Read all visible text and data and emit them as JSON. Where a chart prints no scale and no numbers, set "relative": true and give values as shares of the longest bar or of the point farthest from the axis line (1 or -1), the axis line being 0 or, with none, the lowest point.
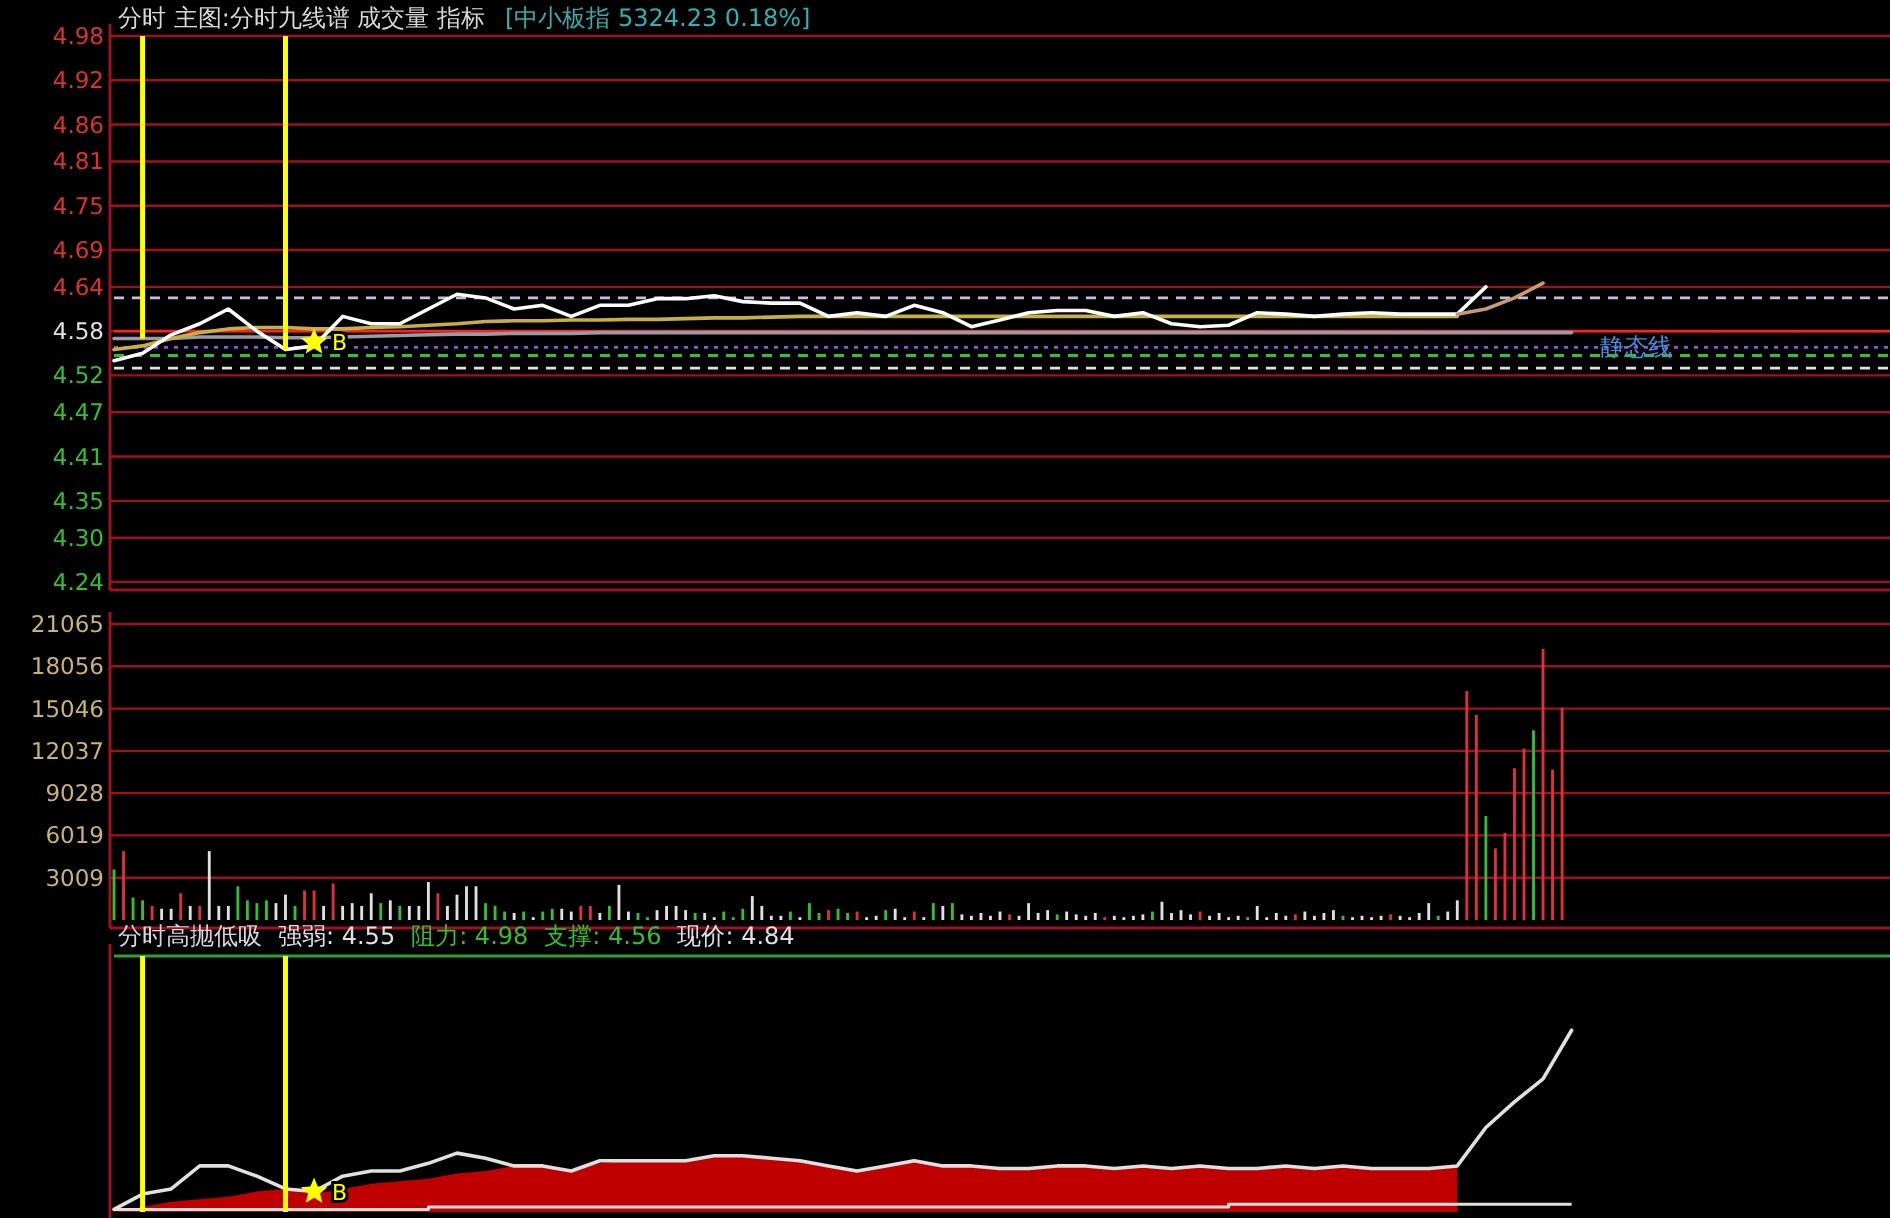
{
  "chart_data": [
    {
      "type": "line",
      "title": "分时  主图:分时九线谱  成交量  指标",
      "subtitle": "[中小板指 5324.23 0.18%]",
      "categories": [
        null,
        null,
        null,
        null,
        null,
        null,
        null,
        null,
        null,
        null,
        null,
        null,
        null,
        null,
        null,
        null,
        null,
        null,
        null,
        null,
        null,
        null,
        null,
        null,
        null,
        null,
        null,
        null,
        null,
        null,
        null,
        null,
        null,
        null,
        null,
        null,
        null,
        null,
        null,
        null,
        null,
        null,
        null,
        null,
        null,
        null,
        null,
        null,
        null,
        null,
        null,
        null,
        null,
        null,
        null,
        null,
        null,
        null,
        null,
        null,
        null,
        null,
        null
      ],
      "series": [
        {
          "color": "#9a9aa8",
          "values": [
            4.57,
            4.57,
            4.57,
            4.572,
            4.572,
            4.572,
            4.571,
            4.571,
            4.572,
            4.573,
            4.574,
            4.575,
            4.576,
            4.576,
            4.577,
            4.577,
            4.577,
            4.578,
            4.578,
            4.578,
            4.578,
            4.578,
            4.578,
            4.578,
            4.578,
            4.578,
            4.578,
            4.578,
            4.578,
            4.578,
            4.578,
            4.578,
            4.578,
            4.578,
            4.578,
            4.578,
            4.578,
            4.578,
            4.578,
            4.578,
            4.578,
            4.578,
            4.578,
            4.578,
            4.578,
            4.578,
            4.578,
            4.578,
            4.578,
            4.578,
            4.578,
            4.578,
            null,
            null,
            null,
            null,
            null,
            null,
            null,
            null,
            null,
            null,
            null
          ]
        },
        {
          "color": "#c8b040",
          "values": [
            4.555,
            4.56,
            4.57,
            4.578,
            4.583,
            4.585,
            4.585,
            4.583,
            4.583,
            4.585,
            4.586,
            4.588,
            4.59,
            4.593,
            4.594,
            4.594,
            4.595,
            4.595,
            4.596,
            4.596,
            4.597,
            4.598,
            4.598,
            4.599,
            4.6,
            4.6,
            4.6,
            4.6,
            4.6,
            4.6,
            4.6,
            4.6,
            4.6,
            4.6,
            4.6,
            4.6,
            4.6,
            4.6,
            4.6,
            4.6,
            4.6,
            4.6,
            4.6,
            4.6,
            4.6,
            4.6,
            4.6,
            4.6,
            null,
            null,
            null,
            null,
            null,
            null,
            null,
            null,
            null,
            null,
            null,
            null,
            null,
            null,
            null
          ]
        },
        {
          "color": "#ffffff",
          "values": [
            4.54,
            4.55,
            4.575,
            4.59,
            4.61,
            4.58,
            4.555,
            4.56,
            4.6,
            4.59,
            4.59,
            4.61,
            4.63,
            4.625,
            4.61,
            4.615,
            4.6,
            4.615,
            4.615,
            4.624,
            4.624,
            4.628,
            4.62,
            4.618,
            4.618,
            4.6,
            4.605,
            4.6,
            4.615,
            4.605,
            4.586,
            4.595,
            4.605,
            4.608,
            4.608,
            4.6,
            4.605,
            4.59,
            4.586,
            4.588,
            4.605,
            4.603,
            4.6,
            4.603,
            4.605,
            4.603,
            4.603,
            4.603,
            4.64,
            null,
            null,
            null,
            null,
            null,
            null,
            null,
            null,
            null,
            null,
            null,
            null,
            null,
            null
          ]
        },
        {
          "color": "#c89a70",
          "values": [
            null,
            null,
            null,
            null,
            null,
            null,
            null,
            null,
            null,
            null,
            null,
            null,
            null,
            null,
            null,
            null,
            null,
            null,
            null,
            null,
            null,
            null,
            null,
            null,
            null,
            null,
            null,
            null,
            null,
            null,
            null,
            null,
            null,
            null,
            null,
            null,
            null,
            null,
            null,
            null,
            null,
            null,
            null,
            null,
            null,
            null,
            null,
            4.603,
            4.61,
            4.625,
            4.645,
            null,
            null,
            null,
            null,
            null,
            null,
            null,
            null,
            null,
            null,
            null,
            null
          ]
        },
        {
          "type": "bar",
          "color": "#ffff00",
          "base": [
            null,
            4.57,
            null,
            null,
            null,
            null,
            4.555,
            null,
            null,
            null,
            null,
            null,
            null,
            null,
            null,
            null,
            null,
            null,
            null,
            null,
            null,
            null,
            null,
            null,
            null,
            null,
            null,
            null,
            null,
            null,
            null,
            null,
            null,
            null,
            null,
            null,
            null,
            null,
            null,
            null,
            null,
            null,
            null,
            null,
            null,
            null,
            null,
            null,
            null,
            null,
            null,
            null,
            null,
            null,
            null,
            null,
            null,
            null,
            null,
            null,
            null,
            null,
            null
          ],
          "values": [
            null,
            0.41,
            null,
            null,
            null,
            null,
            0.425,
            null,
            null,
            null,
            null,
            null,
            null,
            null,
            null,
            null,
            null,
            null,
            null,
            null,
            null,
            null,
            null,
            null,
            null,
            null,
            null,
            null,
            null,
            null,
            null,
            null,
            null,
            null,
            null,
            null,
            null,
            null,
            null,
            null,
            null,
            null,
            null,
            null,
            null,
            null,
            null,
            null,
            null,
            null,
            null,
            null,
            null,
            null,
            null,
            null,
            null,
            null,
            null,
            null,
            null,
            null,
            null
          ]
        },
        {
          "type": "scatter",
          "name": "B",
          "color": "#ffff00",
          "marker": "star",
          "values": [
            null,
            null,
            null,
            null,
            null,
            null,
            null,
            4.565,
            null,
            null,
            null,
            null,
            null,
            null,
            null,
            null,
            null,
            null,
            null,
            null,
            null,
            null,
            null,
            null,
            null,
            null,
            null,
            null,
            null,
            null,
            null,
            null,
            null,
            null,
            null,
            null,
            null,
            null,
            null,
            null,
            null,
            null,
            null,
            null,
            null,
            null,
            null,
            null,
            null,
            null,
            null,
            null,
            null,
            null,
            null,
            null,
            null,
            null,
            null,
            null,
            null,
            null,
            null
          ]
        }
      ],
      "ylim": [
        4.24,
        4.98
      ],
      "yticks": [
        4.98,
        4.92,
        4.86,
        4.81,
        4.75,
        4.69,
        4.64,
        4.58,
        4.52,
        4.47,
        4.41,
        4.35,
        {
          "value": 4.3,
          "label": "4.30"
        },
        4.24
      ],
      "grid": "y",
      "tick_labels": "y",
      "ref_lines": [
        {
          "axis": "y",
          "value": 4.58,
          "color": "#ff2020"
        },
        {
          "axis": "y",
          "value": 4.625,
          "color": "#c0c0e0",
          "line_style": "dashed"
        },
        {
          "axis": "y",
          "value": 4.558,
          "color": "#9050e0",
          "line_style": "dotted"
        },
        {
          "axis": "y",
          "value": 4.547,
          "color": "#30c030",
          "line_style": "dashed"
        },
        {
          "axis": "y",
          "value": 4.53,
          "color": "#e0e0e0",
          "line_style": "dashed"
        }
      ],
      "annotations": [
        {
          "text": "静态线",
          "y": 4.558
        }
      ]
    },
    {
      "type": "bar",
      "categories": [
        null,
        null,
        null,
        null,
        null,
        null,
        null,
        null,
        null,
        null,
        null,
        null,
        null,
        null,
        null,
        null,
        null,
        null,
        null,
        null,
        null,
        null,
        null,
        null,
        null,
        null,
        null,
        null,
        null,
        null,
        null,
        null,
        null,
        null,
        null,
        null,
        null,
        null,
        null,
        null,
        null,
        null,
        null,
        null,
        null,
        null,
        null,
        null,
        null,
        null,
        null,
        null,
        null,
        null,
        null,
        null,
        null,
        null,
        null,
        null,
        null,
        null,
        null,
        null,
        null,
        null,
        null,
        null,
        null,
        null,
        null,
        null,
        null,
        null,
        null,
        null,
        null,
        null,
        null,
        null,
        null,
        null,
        null,
        null,
        null,
        null,
        null,
        null,
        null,
        null,
        null,
        null,
        null,
        null,
        null,
        null,
        null,
        null,
        null,
        null,
        null,
        null,
        null,
        null,
        null,
        null,
        null,
        null,
        null,
        null,
        null,
        null,
        null,
        null,
        null,
        null,
        null,
        null,
        null,
        null,
        null,
        null,
        null,
        null,
        null,
        null,
        null,
        null,
        null,
        null,
        null,
        null,
        null,
        null,
        null,
        null,
        null,
        null,
        null,
        null,
        null,
        null,
        null,
        null,
        null,
        null,
        null,
        null,
        null,
        null,
        null,
        null,
        null,
        null,
        null,
        null,
        null,
        null,
        null,
        null,
        null,
        null,
        null,
        null,
        null,
        null,
        null,
        null,
        null,
        null,
        null,
        null,
        null,
        null,
        null,
        null,
        null,
        null,
        null,
        null,
        null,
        null,
        null,
        null,
        null,
        null,
        null
      ],
      "values": [
        3600,
        4900,
        1600,
        1400,
        1000,
        800,
        800,
        1900,
        1000,
        1000,
        4900,
        1000,
        1000,
        2400,
        1400,
        1200,
        1400,
        1200,
        1800,
        1000,
        2100,
        2100,
        1000,
        2600,
        1000,
        1200,
        1000,
        1900,
        1200,
        1400,
        1000,
        1000,
        1000,
        2700,
        1900,
        1000,
        1800,
        2400,
        2400,
        1200,
        1000,
        600,
        500,
        600,
        200,
        600,
        800,
        800,
        600,
        1000,
        1000,
        500,
        1000,
        2500,
        600,
        500,
        200,
        700,
        1000,
        1000,
        700,
        500,
        500,
        200,
        600,
        200,
        800,
        1700,
        1000,
        300,
        300,
        600,
        200,
        1200,
        500,
        700,
        800,
        500,
        600,
        200,
        300,
        700,
        800,
        200,
        600,
        200,
        1200,
        1000,
        1200,
        400,
        300,
        500,
        300,
        600,
        400,
        300,
        1200,
        500,
        700,
        400,
        600,
        400,
        300,
        500,
        200,
        300,
        200,
        300,
        400,
        600,
        1300,
        500,
        700,
        400,
        600,
        300,
        500,
        200,
        300,
        200,
        1000,
        200,
        500,
        300,
        400,
        600,
        300,
        500,
        700,
        300,
        200,
        300,
        200,
        300,
        400,
        300,
        200,
        500,
        1200,
        300,
        600,
        1400,
        16300,
        14600,
        7400,
        5100,
        6200,
        10800,
        12200,
        13500,
        19300,
        10700,
        15100,
        null,
        null,
        null,
        null,
        null,
        null,
        null,
        null,
        null,
        null,
        null,
        null,
        null,
        null,
        null,
        null,
        null,
        null,
        null,
        null,
        null,
        null,
        null,
        null,
        null,
        null,
        null,
        null,
        null,
        null,
        null,
        null,
        null,
        null
      ],
      "colors": [
        "#30c030",
        "#e03040",
        "#30c030",
        "#30c030",
        "#e03040",
        "#e0e0e0",
        "#e0e0e0",
        "#e03040",
        "#e0e0e0",
        "#e03040",
        "#e0e0e0",
        "#e0e0e0",
        "#e0e0e0",
        "#30c030",
        "#30c030",
        "#30c030",
        "#30c030",
        "#e0e0e0",
        "#e0e0e0",
        "#30c030",
        "#e03040",
        "#e03040",
        "#e0e0e0",
        "#e03040",
        "#e0e0e0",
        "#e0e0e0",
        "#e0e0e0",
        "#e0e0e0",
        "#30c030",
        "#e0e0e0",
        "#30c030",
        "#e0e0e0",
        "#e0e0e0",
        "#e0e0e0",
        "#e03040",
        "#e0e0e0",
        "#e0e0e0",
        "#e0e0e0",
        "#e0e0e0",
        "#30c030",
        "#30c030",
        "#30c030",
        "#e0e0e0",
        "#30c030",
        "#e0e0e0",
        "#30c030",
        "#30c030",
        "#e0e0e0",
        "#e0e0e0",
        "#e03040",
        "#e03040",
        "#e0e0e0",
        "#30c030",
        "#e0e0e0",
        "#e0e0e0",
        "#30c030",
        "#30c030",
        "#e0e0e0",
        "#e0e0e0",
        "#e0e0e0",
        "#e0e0e0",
        "#30c030",
        "#e0e0e0",
        "#e0e0e0",
        "#30c030",
        "#30c030",
        "#30c030",
        "#e0e0e0",
        "#e0e0e0",
        "#e0e0e0",
        "#e0e0e0",
        "#30c030",
        "#e0e0e0",
        "#30c030",
        "#30c030",
        "#e03040",
        "#30c030",
        "#30c030",
        "#e03040",
        "#e0e0e0",
        "#e0e0e0",
        "#30c030",
        "#e0e0e0",
        "#e0e0e0",
        "#e03040",
        "#e0e0e0",
        "#30c030",
        "#e0e0e0",
        "#30c030",
        "#e0e0e0",
        "#e0e0e0",
        "#e0e0e0",
        "#e0e0e0",
        "#e0e0e0",
        "#e03040",
        "#e0e0e0",
        "#e0e0e0",
        "#e0e0e0",
        "#e0e0e0",
        "#30c030",
        "#e0e0e0",
        "#e0e0e0",
        "#e0e0e0",
        "#e0e0e0",
        "#e03040",
        "#e0e0e0",
        "#e0e0e0",
        "#e0e0e0",
        "#e0e0e0",
        "#30c030",
        "#e0e0e0",
        "#e0e0e0",
        "#e0e0e0",
        "#e0e0e0",
        "#e03040",
        "#e0e0e0",
        "#e0e0e0",
        "#e0e0e0",
        "#e0e0e0",
        "#30c030",
        "#e0e0e0",
        "#e0e0e0",
        "#e0e0e0",
        "#e0e0e0",
        "#e03040",
        "#e0e0e0",
        "#e0e0e0",
        "#e0e0e0",
        "#e0e0e0",
        "#30c030",
        "#e0e0e0",
        "#e0e0e0",
        "#e0e0e0",
        "#e0e0e0",
        "#e03040",
        "#e0e0e0",
        "#e0e0e0",
        "#e0e0e0",
        "#e0e0e0",
        "#30c030",
        "#e0e0e0",
        "#e0e0e0",
        "#e03040",
        "#e03040",
        "#30c030",
        "#e03040",
        "#e03040",
        "#e03040",
        "#e03040",
        "#30c030",
        "#e03040",
        "#e03040",
        "#e03040",
        null,
        null,
        null,
        null,
        null,
        null,
        null,
        null,
        null,
        null,
        null,
        null,
        null,
        null,
        null,
        null,
        null,
        null,
        null,
        null,
        null,
        null,
        null,
        null,
        null,
        null,
        null,
        null,
        null,
        null,
        null,
        null,
        null,
        null
      ],
      "ylim": [
        0,
        21065
      ],
      "yticks": [
        21065,
        18056,
        15046,
        12037,
        9028,
        6019,
        3009
      ],
      "grid": "y",
      "tick_labels": "y"
    },
    {
      "type": "line",
      "relative": true,
      "title": "分时高抛低吸",
      "categories": [
        null,
        null,
        null,
        null,
        null,
        null,
        null,
        null,
        null,
        null,
        null,
        null,
        null,
        null,
        null,
        null,
        null,
        null,
        null,
        null,
        null,
        null,
        null,
        null,
        null,
        null,
        null,
        null,
        null,
        null,
        null,
        null,
        null,
        null,
        null,
        null,
        null,
        null,
        null,
        null,
        null,
        null,
        null,
        null,
        null,
        null,
        null,
        null,
        null,
        null,
        null,
        null,
        null,
        null,
        null,
        null,
        null,
        null,
        null,
        null,
        null,
        null,
        null
      ],
      "series": [
        {
          "type": "area",
          "color": "#c00000",
          "values": [
            0,
            0.02,
            0.04,
            0.05,
            0.06,
            0.08,
            0.09,
            0.07,
            0.09,
            0.11,
            0.12,
            0.13,
            0.15,
            0.16,
            0.18,
            0.18,
            0.16,
            0.19,
            0.2,
            0.2,
            0.2,
            0.22,
            0.22,
            0.21,
            0.2,
            0.18,
            0.16,
            0.18,
            0.2,
            0.18,
            0.18,
            0.17,
            0.17,
            0.18,
            0.18,
            0.17,
            0.18,
            0.17,
            0.18,
            0.17,
            0.17,
            0.18,
            0.17,
            0.18,
            0.17,
            0.17,
            0.17,
            0.18,
            null,
            null,
            null,
            null,
            null,
            null,
            null,
            null,
            null,
            null,
            null,
            null,
            null,
            null,
            null
          ]
        },
        {
          "color": "#e0e0e0",
          "values": [
            0.01,
            0.07,
            0.09,
            0.18,
            0.18,
            0.14,
            0.09,
            0.08,
            0.14,
            0.16,
            0.16,
            0.19,
            0.23,
            0.21,
            0.18,
            0.18,
            0.16,
            0.2,
            0.2,
            0.2,
            0.2,
            0.22,
            0.22,
            0.21,
            0.2,
            0.18,
            0.16,
            0.18,
            0.2,
            0.18,
            0.18,
            0.17,
            0.17,
            0.18,
            0.18,
            0.17,
            0.18,
            0.17,
            0.18,
            0.17,
            0.17,
            0.18,
            0.17,
            0.18,
            0.17,
            0.17,
            0.17,
            0.18,
            0.33,
            0.43,
            0.52,
            0.71,
            null,
            null,
            null,
            null,
            null,
            null,
            null,
            null,
            null,
            null,
            null
          ]
        },
        {
          "type": "step",
          "color": "#e0e0e0",
          "values": [
            0.01,
            0.01,
            0.01,
            0.01,
            0.01,
            0.01,
            0.01,
            0.01,
            0.01,
            0.01,
            0.01,
            0.02,
            0.02,
            0.02,
            0.02,
            0.02,
            0.02,
            0.02,
            0.02,
            0.02,
            0.02,
            0.02,
            0.02,
            0.02,
            0.02,
            0.02,
            0.02,
            0.02,
            0.02,
            0.02,
            0.02,
            0.02,
            0.02,
            0.02,
            0.02,
            0.02,
            0.02,
            0.02,
            0.02,
            0.03,
            0.03,
            0.03,
            0.03,
            0.03,
            0.03,
            0.03,
            0.03,
            0.03,
            0.03,
            0.03,
            0.03,
            0.03,
            null,
            null,
            null,
            null,
            null,
            null,
            null,
            null,
            null,
            null,
            null
          ]
        },
        {
          "type": "bar",
          "color": "#ffff00",
          "values": [
            null,
            1,
            null,
            null,
            null,
            null,
            1,
            null,
            null,
            null,
            null,
            null,
            null,
            null,
            null,
            null,
            null,
            null,
            null,
            null,
            null,
            null,
            null,
            null,
            null,
            null,
            null,
            null,
            null,
            null,
            null,
            null,
            null,
            null,
            null,
            null,
            null,
            null,
            null,
            null,
            null,
            null,
            null,
            null,
            null,
            null,
            null,
            null,
            null,
            null,
            null,
            null,
            null,
            null,
            null,
            null,
            null,
            null,
            null,
            null,
            null,
            null,
            null
          ]
        },
        {
          "type": "scatter",
          "name": "B",
          "color": "#ffff00",
          "marker": "star",
          "values": [
            null,
            null,
            null,
            null,
            null,
            null,
            null,
            0.08,
            null,
            null,
            null,
            null,
            null,
            null,
            null,
            null,
            null,
            null,
            null,
            null,
            null,
            null,
            null,
            null,
            null,
            null,
            null,
            null,
            null,
            null,
            null,
            null,
            null,
            null,
            null,
            null,
            null,
            null,
            null,
            null,
            null,
            null,
            null,
            null,
            null,
            null,
            null,
            null,
            null,
            null,
            null,
            null,
            null,
            null,
            null,
            null,
            null,
            null,
            null,
            null,
            null,
            null,
            null
          ]
        }
      ],
      "ref_lines": [
        {
          "axis": "y",
          "value": 1,
          "color": "#30a030"
        }
      ],
      "annotations": [
        "强弱: 4.55",
        "阻力: 4.98",
        "支撑: 4.56",
        "现价: 4.84"
      ]
    }
  ]
}
